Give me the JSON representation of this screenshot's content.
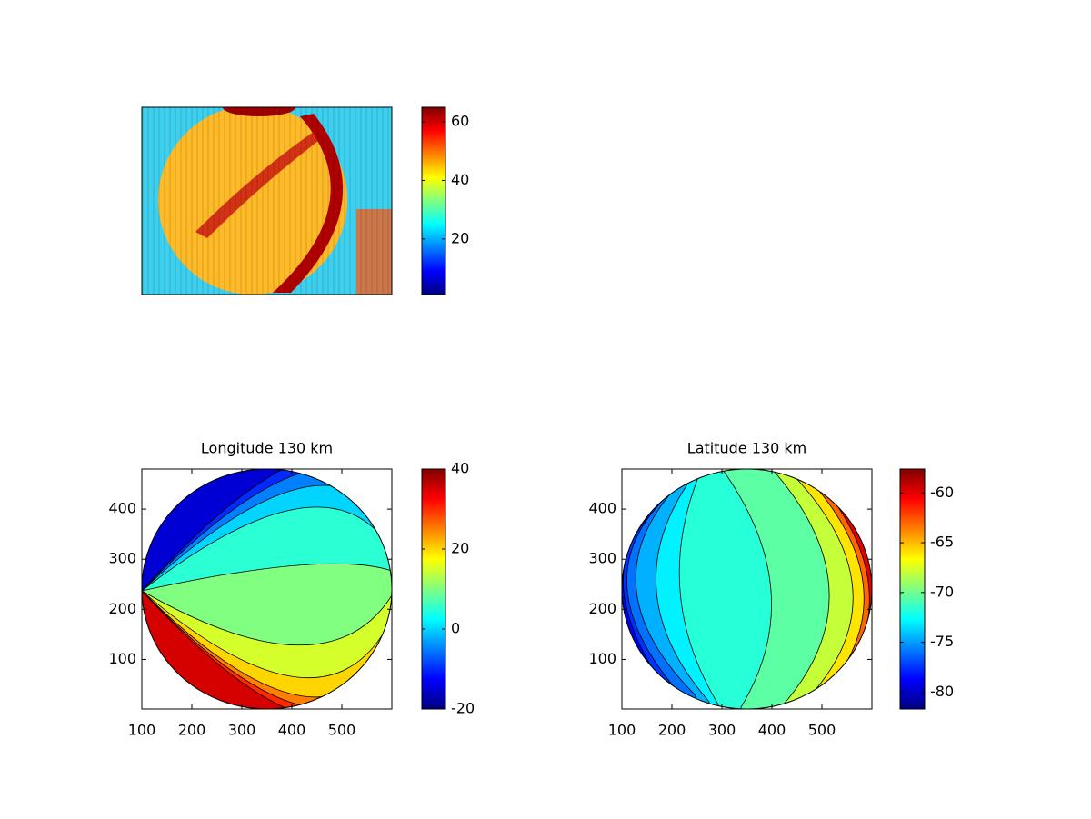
{
  "chart_data": [
    {
      "type": "image",
      "colormap": "jet",
      "clim": [
        1,
        65
      ],
      "cticks": [
        20,
        40,
        60
      ]
    },
    {
      "type": "contour",
      "colormap": "jet",
      "title": "Longitude 130 km",
      "xlim": [
        100,
        600
      ],
      "ylim": [
        1,
        480
      ],
      "xticks": [
        100,
        200,
        300,
        400,
        500
      ],
      "yticks": [
        100,
        200,
        300,
        400
      ],
      "clim": [
        -20,
        40
      ],
      "cticks": [
        -20,
        0,
        20,
        40
      ],
      "levels": [
        5,
        0,
        -5,
        -10,
        -15,
        15,
        20,
        25,
        30,
        35
      ]
    },
    {
      "type": "contour",
      "colormap": "jet",
      "title": "Latitude 130 km",
      "xlim": [
        100,
        600
      ],
      "ylim": [
        1,
        480
      ],
      "xticks": [
        100,
        200,
        300,
        400,
        500
      ],
      "yticks": [
        100,
        200,
        300,
        400
      ],
      "clim": [
        -81.7,
        -57.6
      ],
      "cticks": [
        -80,
        -75,
        -70,
        -65,
        -60
      ],
      "levels": [
        -73,
        -74.5,
        -76,
        -77.5,
        -79,
        -70.5,
        -68,
        -66,
        -63,
        -60
      ]
    }
  ]
}
